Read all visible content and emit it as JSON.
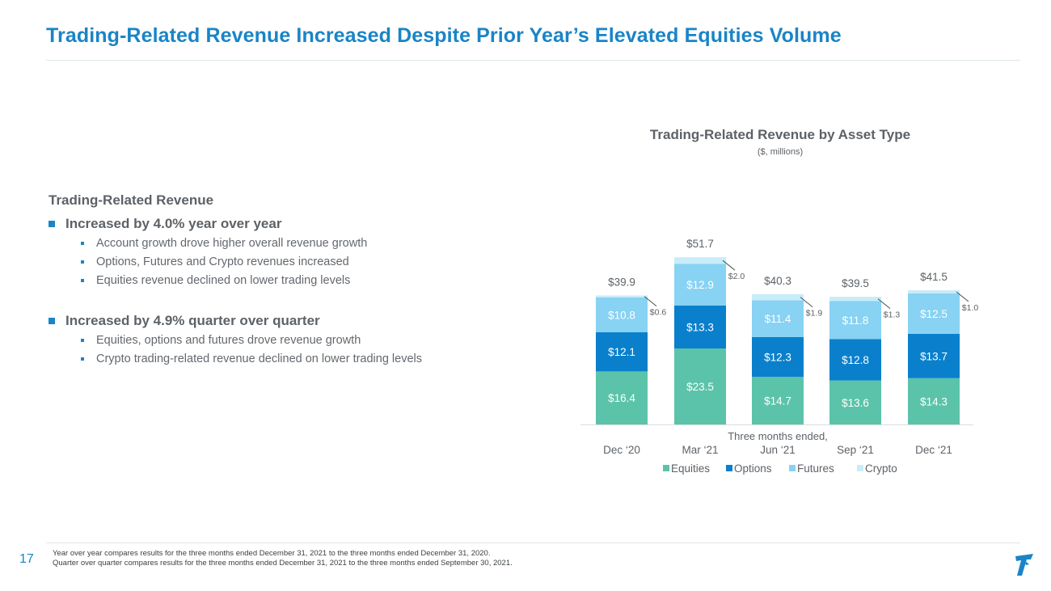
{
  "title": "Trading-Related Revenue Increased Despite Prior Year’s Elevated Equities Volume",
  "bullets": {
    "heading": "Trading-Related Revenue",
    "groups": [
      {
        "label": "Increased by 4.0% year over year",
        "items": [
          "Account growth drove higher overall revenue growth",
          "Options, Futures and Crypto revenues increased",
          "Equities revenue declined on lower trading levels"
        ]
      },
      {
        "label": "Increased by 4.9% quarter over quarter",
        "items": [
          "Equities, options and futures drove revenue growth",
          "Crypto trading-related revenue declined on lower trading levels"
        ]
      }
    ]
  },
  "chart_data": {
    "type": "bar",
    "stacked": true,
    "title": "Trading-Related Revenue by Asset Type",
    "subtitle": "($, millions)",
    "xlabel": "Three months ended,",
    "categories": [
      "Dec ‘20",
      "Mar ‘21",
      "Jun ‘21",
      "Sep ‘21",
      "Dec ‘21"
    ],
    "series": [
      {
        "name": "Equities",
        "color": "#5bc3a9",
        "values": [
          16.4,
          23.5,
          14.7,
          13.6,
          14.3
        ],
        "labels": [
          "$16.4",
          "$23.5",
          "$14.7",
          "$13.6",
          "$14.3"
        ]
      },
      {
        "name": "Options",
        "color": "#0a80cc",
        "values": [
          12.1,
          13.3,
          12.3,
          12.8,
          13.7
        ],
        "labels": [
          "$12.1",
          "$13.3",
          "$12.3",
          "$12.8",
          "$13.7"
        ]
      },
      {
        "name": "Futures",
        "color": "#88d2f3",
        "values": [
          10.8,
          12.9,
          11.4,
          11.8,
          12.5
        ],
        "labels": [
          "$10.8",
          "$12.9",
          "$11.4",
          "$11.8",
          "$12.5"
        ]
      },
      {
        "name": "Crypto",
        "color": "#c9ecf9",
        "values": [
          0.6,
          2.0,
          1.9,
          1.3,
          1.0
        ],
        "labels": [
          "$0.6",
          "$2.0",
          "$1.9",
          "$1.3",
          "$1.0"
        ]
      }
    ],
    "totals": [
      39.9,
      51.7,
      40.3,
      39.5,
      41.5
    ],
    "total_labels": [
      "$39.9",
      "$51.7",
      "$40.3",
      "$39.5",
      "$41.5"
    ],
    "ylim": [
      0,
      55
    ],
    "legend": "bottom"
  },
  "footnotes": [
    "Year over year compares results for the three months ended December 31, 2021 to the three months ended December 31, 2020.",
    "Quarter over quarter compares results for the three months ended December 31, 2021 to the three months ended September 30, 2021."
  ],
  "page_number": "17",
  "colors": {
    "accent": "#1a84c7",
    "text": "#5d6267"
  },
  "logo_icon": "tastytrade-logo-icon"
}
